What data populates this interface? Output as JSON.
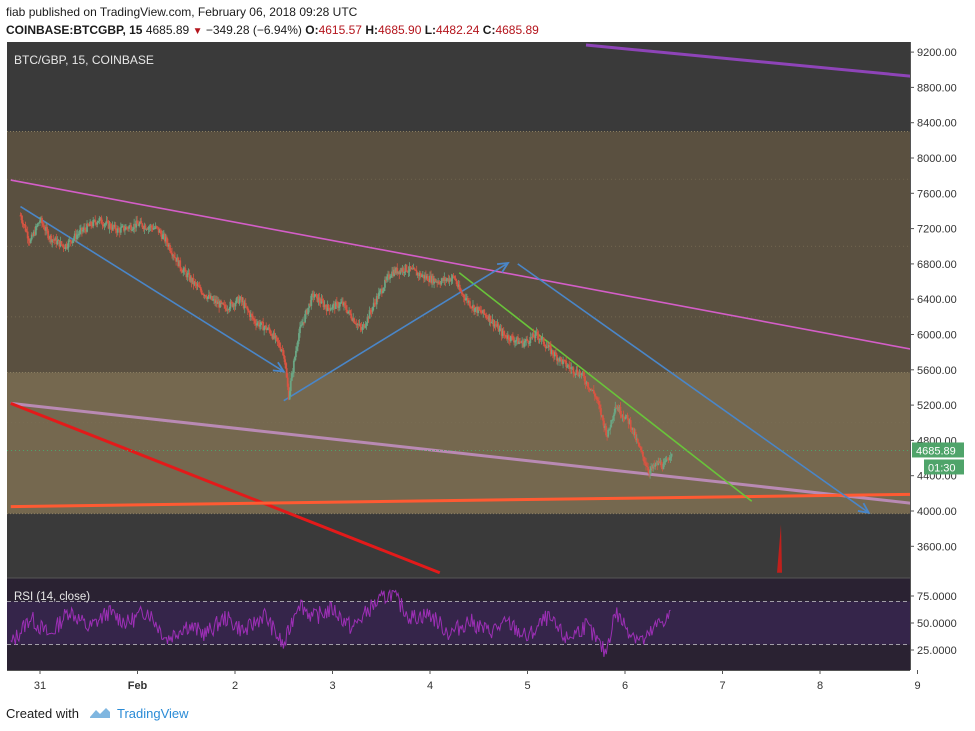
{
  "header": {
    "author": "fiab",
    "published": "published on TradingView.com, February 06, 2018 09:28 UTC",
    "symbol": "COINBASE:BTCGBP, 15",
    "last": "4685.89",
    "change": "−349.28 (−6.94%)",
    "o_label": "O:",
    "o_value": "4615.57",
    "h_label": "H:",
    "h_value": "4685.90",
    "l_label": "L:",
    "l_value": "4482.24",
    "c_label": "C:",
    "c_value": "4685.89"
  },
  "footer": {
    "created_with": "Created with",
    "brand": "TradingView"
  },
  "colors": {
    "bg_dark": "#3a3a3a",
    "zone_upper": "#5a5040",
    "zone_lower": "#75684f",
    "candle_up": "#6ba583",
    "candle_down": "#d75442",
    "rsi_line": "#9c2fb5",
    "rsi_bg": "#2a2232"
  },
  "chart_data": [
    {
      "type": "line",
      "title": "BTC/GBP, 15, COINBASE",
      "price_axis": {
        "ylim": [
          3300,
          9400
        ],
        "ticks": [
          "9200.00",
          "8800.00",
          "8400.00",
          "8000.00",
          "7600.00",
          "7200.00",
          "6800.00",
          "6400.00",
          "6000.00",
          "5600.00",
          "5200.00",
          "4800.00",
          "4400.00",
          "4000.00",
          "3600.00"
        ],
        "last_price_label": "4685.89",
        "countdown_label": "01:30"
      },
      "x_axis": {
        "ticks": [
          "31",
          "Feb",
          "2",
          "3",
          "4",
          "5",
          "6",
          "7",
          "8",
          "9"
        ]
      },
      "zones": [
        {
          "from": 5570,
          "to": 8300
        },
        {
          "from": 3970,
          "to": 5570
        }
      ],
      "price_series": [
        [
          30.8,
          7350
        ],
        [
          30.9,
          7050
        ],
        [
          31.0,
          7300
        ],
        [
          31.1,
          7100
        ],
        [
          31.25,
          7000
        ],
        [
          31.4,
          7150
        ],
        [
          31.6,
          7300
        ],
        [
          31.8,
          7180
        ],
        [
          32.0,
          7250
        ],
        [
          32.2,
          7200
        ],
        [
          32.3,
          7050
        ],
        [
          32.45,
          6750
        ],
        [
          32.6,
          6550
        ],
        [
          32.75,
          6400
        ],
        [
          32.9,
          6300
        ],
        [
          33.05,
          6400
        ],
        [
          33.2,
          6150
        ],
        [
          33.35,
          6050
        ],
        [
          33.5,
          5800
        ],
        [
          33.55,
          5300
        ],
        [
          33.65,
          6000
        ],
        [
          33.8,
          6450
        ],
        [
          33.95,
          6300
        ],
        [
          34.1,
          6350
        ],
        [
          34.3,
          6050
        ],
        [
          34.45,
          6400
        ],
        [
          34.6,
          6700
        ],
        [
          34.75,
          6750
        ],
        [
          34.95,
          6650
        ],
        [
          35.1,
          6600
        ],
        [
          35.25,
          6650
        ],
        [
          35.3,
          6500
        ],
        [
          35.45,
          6300
        ],
        [
          35.6,
          6200
        ],
        [
          35.75,
          6000
        ],
        [
          35.95,
          5900
        ],
        [
          36.1,
          6000
        ],
        [
          36.25,
          5800
        ],
        [
          36.4,
          5650
        ],
        [
          36.55,
          5550
        ],
        [
          36.7,
          5300
        ],
        [
          36.82,
          4850
        ],
        [
          36.9,
          5200
        ],
        [
          37.05,
          5000
        ],
        [
          37.15,
          4700
        ],
        [
          37.25,
          4450
        ],
        [
          37.35,
          4550
        ],
        [
          37.4,
          4500
        ],
        [
          37.48,
          4685.89
        ]
      ],
      "annotations": [
        {
          "type": "arrow",
          "from": [
            30.8,
            7450
          ],
          "to": [
            33.5,
            5580
          ],
          "color": "#4a86c8"
        },
        {
          "type": "arrow",
          "from": [
            33.5,
            5250
          ],
          "to": [
            35.8,
            6810
          ],
          "color": "#4a86c8"
        },
        {
          "type": "arrow",
          "from": [
            35.9,
            6800
          ],
          "to": [
            39.5,
            3980
          ],
          "color": "#4a86c8"
        },
        {
          "type": "line",
          "from": [
            35.3,
            6700
          ],
          "to": [
            38.3,
            4110
          ],
          "color": "#69c33a"
        },
        {
          "type": "line",
          "from": [
            30.7,
            7750
          ],
          "to": [
            40.0,
            5820
          ],
          "color": "#d45ec8"
        },
        {
          "type": "line",
          "from": [
            30.7,
            5220
          ],
          "to": [
            40.0,
            4080
          ],
          "color": "#b98ab4"
        },
        {
          "type": "line",
          "from": [
            30.7,
            4050
          ],
          "to": [
            40.0,
            4190
          ],
          "color": "#ff5a32"
        },
        {
          "type": "line",
          "from": [
            30.7,
            5220
          ],
          "to": [
            35.1,
            3300
          ],
          "color": "#e31a1a"
        },
        {
          "type": "line",
          "from": [
            36.6,
            9280
          ],
          "to": [
            40.0,
            8920
          ],
          "color": "#8e44b8"
        },
        {
          "type": "spike",
          "at": 38.6,
          "from": 3300,
          "to": 3850,
          "color": "#c0201c"
        }
      ]
    },
    {
      "type": "line",
      "title": "RSI (14, close)",
      "ylim": [
        15,
        82
      ],
      "ticks": [
        "75.0000",
        "50.0000",
        "25.0000"
      ],
      "bands": [
        30,
        70
      ],
      "series": [
        [
          30.7,
          30
        ],
        [
          30.9,
          55
        ],
        [
          31.1,
          38
        ],
        [
          31.3,
          62
        ],
        [
          31.5,
          45
        ],
        [
          31.7,
          60
        ],
        [
          31.9,
          50
        ],
        [
          32.1,
          62
        ],
        [
          32.3,
          35
        ],
        [
          32.5,
          48
        ],
        [
          32.7,
          40
        ],
        [
          32.9,
          55
        ],
        [
          33.1,
          42
        ],
        [
          33.3,
          58
        ],
        [
          33.5,
          28
        ],
        [
          33.65,
          70
        ],
        [
          33.8,
          55
        ],
        [
          34.0,
          63
        ],
        [
          34.2,
          45
        ],
        [
          34.4,
          65
        ],
        [
          34.6,
          78
        ],
        [
          34.8,
          55
        ],
        [
          35.0,
          58
        ],
        [
          35.2,
          40
        ],
        [
          35.4,
          52
        ],
        [
          35.6,
          42
        ],
        [
          35.8,
          50
        ],
        [
          36.0,
          36
        ],
        [
          36.2,
          55
        ],
        [
          36.4,
          35
        ],
        [
          36.6,
          48
        ],
        [
          36.8,
          22
        ],
        [
          36.9,
          60
        ],
        [
          37.05,
          42
        ],
        [
          37.2,
          33
        ],
        [
          37.35,
          50
        ],
        [
          37.48,
          58
        ]
      ]
    }
  ]
}
